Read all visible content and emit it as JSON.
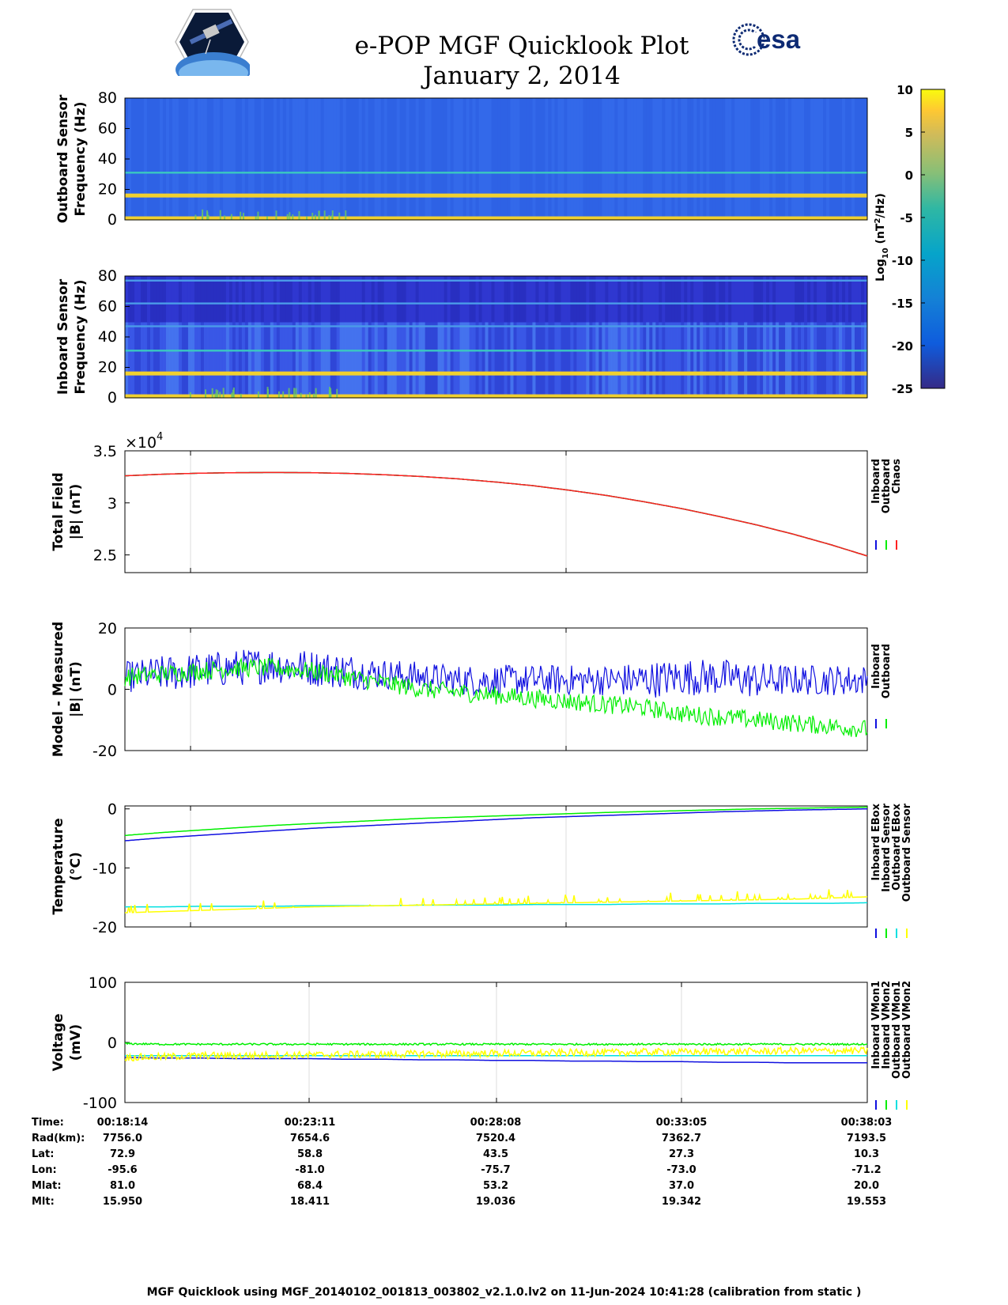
{
  "header": {
    "title": "e-POP MGF Quicklook Plot",
    "date": "January 2, 2014",
    "mission_logo_icon": "cassiope-satellite-logo",
    "agency_logo_icon": "esa-logo",
    "agency_text": "esa"
  },
  "colors": {
    "inboard": "#1010e0",
    "outboard": "#00ee00",
    "chaos": "#ff2020",
    "inboard_sensor": "#00e0e0",
    "outboard_sensor": "#ffff00",
    "spec_background": "#2f5fe0",
    "spec_line": "#f0d030"
  },
  "chart_data": [
    {
      "type": "heatmap",
      "name": "outboard-spectrogram",
      "ylabel": [
        "Outboard Sensor",
        "Frequency (Hz)"
      ],
      "ylim": [
        0,
        80
      ],
      "yticks": [
        0,
        20,
        40,
        60,
        80
      ],
      "lines_hz": [
        1,
        16,
        31
      ]
    },
    {
      "type": "heatmap",
      "name": "inboard-spectrogram",
      "ylabel": [
        "Inboard Sensor",
        "Frequency (Hz)"
      ],
      "ylim": [
        0,
        80
      ],
      "yticks": [
        0,
        20,
        40,
        60,
        80
      ],
      "lines_hz": [
        1,
        16,
        31,
        47,
        62,
        77
      ]
    },
    {
      "type": "colorbar",
      "label": "Log10 (nT2/Hz)",
      "label_base": "Log",
      "label_sub": "10",
      "label_paren_open": " (nT",
      "label_sup": "2",
      "label_tail": "/Hz)",
      "range": [
        -25,
        10
      ],
      "ticks": [
        10,
        5,
        0,
        -5,
        -10,
        -15,
        -20,
        -25
      ]
    },
    {
      "type": "line",
      "name": "total-field",
      "ylabel": [
        "Total Field",
        "|B| (nT)"
      ],
      "exponent_label": "×10",
      "exponent": "4",
      "ylim": [
        2.33,
        3.5
      ],
      "yticks": [
        2.5,
        3,
        3.5
      ],
      "ytick_labels": [
        "2.5",
        "3",
        "3.5"
      ],
      "x": [
        0,
        0.05,
        0.1,
        0.15,
        0.2,
        0.25,
        0.3,
        0.35,
        0.4,
        0.45,
        0.5,
        0.55,
        0.6,
        0.65,
        0.7,
        0.75,
        0.8,
        0.85,
        0.9,
        0.95,
        1.0
      ],
      "series": [
        {
          "name": "Inboard",
          "color_key": "inboard",
          "values": [
            3.26,
            3.275,
            3.285,
            3.29,
            3.292,
            3.29,
            3.283,
            3.27,
            3.253,
            3.23,
            3.2,
            3.165,
            3.12,
            3.07,
            3.01,
            2.945,
            2.87,
            2.79,
            2.7,
            2.6,
            2.49
          ]
        },
        {
          "name": "Outboard",
          "color_key": "outboard",
          "values": [
            3.26,
            3.275,
            3.285,
            3.29,
            3.292,
            3.29,
            3.283,
            3.27,
            3.253,
            3.23,
            3.2,
            3.165,
            3.12,
            3.07,
            3.01,
            2.945,
            2.87,
            2.79,
            2.7,
            2.6,
            2.49
          ]
        },
        {
          "name": "Chaos",
          "color_key": "chaos",
          "values": [
            3.26,
            3.275,
            3.285,
            3.29,
            3.292,
            3.29,
            3.283,
            3.27,
            3.253,
            3.23,
            3.2,
            3.165,
            3.12,
            3.07,
            3.01,
            2.945,
            2.87,
            2.79,
            2.7,
            2.6,
            2.49
          ]
        }
      ]
    },
    {
      "type": "line",
      "name": "model-measured",
      "ylabel": [
        "Model - Measured",
        "|B| (nT)"
      ],
      "ylim": [
        -20,
        20
      ],
      "yticks": [
        -20,
        0,
        20
      ],
      "x": [
        0,
        0.05,
        0.1,
        0.15,
        0.2,
        0.25,
        0.3,
        0.35,
        0.4,
        0.45,
        0.5,
        0.55,
        0.6,
        0.65,
        0.7,
        0.75,
        0.8,
        0.85,
        0.9,
        0.95,
        1.0
      ],
      "series": [
        {
          "name": "Inboard",
          "color_key": "inboard",
          "center": [
            4,
            5,
            6,
            7,
            8,
            7,
            6,
            5,
            4,
            3,
            3,
            3,
            3,
            3,
            3,
            4,
            4,
            3,
            3,
            3,
            3
          ],
          "amplitude": [
            5,
            6,
            6,
            6,
            6,
            6,
            6,
            5,
            5,
            5,
            5,
            5,
            5,
            5,
            6,
            6,
            6,
            6,
            5,
            5,
            5
          ]
        },
        {
          "name": "Outboard",
          "color_key": "outboard",
          "center": [
            4,
            5,
            6,
            7,
            7,
            6,
            4,
            2,
            0,
            -1,
            -2,
            -3,
            -4,
            -5,
            -6,
            -8,
            -9,
            -10,
            -11,
            -12,
            -13
          ],
          "amplitude": [
            3,
            3,
            3,
            3,
            3,
            3,
            3,
            3,
            3,
            3,
            3,
            3,
            3,
            3,
            3,
            3,
            3,
            3,
            3,
            3,
            3
          ]
        }
      ]
    },
    {
      "type": "line",
      "name": "temperature",
      "ylabel": [
        "Temperature",
        "(°C)"
      ],
      "ylim": [
        -20,
        0.5
      ],
      "yticks": [
        -20,
        -10,
        0
      ],
      "x": [
        0,
        0.05,
        0.1,
        0.15,
        0.2,
        0.25,
        0.3,
        0.35,
        0.4,
        0.45,
        0.5,
        0.55,
        0.6,
        0.65,
        0.7,
        0.75,
        0.8,
        0.85,
        0.9,
        0.95,
        1.0
      ],
      "series": [
        {
          "name": "Inboard EBox",
          "color_key": "inboard",
          "values": [
            -5.4,
            -4.9,
            -4.5,
            -4.1,
            -3.7,
            -3.3,
            -3.0,
            -2.7,
            -2.4,
            -2.1,
            -1.8,
            -1.5,
            -1.3,
            -1.1,
            -0.9,
            -0.7,
            -0.5,
            -0.35,
            -0.2,
            -0.1,
            0.0
          ]
        },
        {
          "name": "Inboard Sensor",
          "color_key": "outboard",
          "values": [
            -4.5,
            -4.0,
            -3.6,
            -3.2,
            -2.8,
            -2.5,
            -2.2,
            -1.9,
            -1.6,
            -1.4,
            -1.2,
            -1.0,
            -0.8,
            -0.6,
            -0.45,
            -0.3,
            -0.15,
            0.0,
            0.1,
            0.2,
            0.3
          ]
        },
        {
          "name": "Outboard EBox",
          "color_key": "inboard_sensor",
          "values": [
            -16.6,
            -16.6,
            -16.5,
            -16.5,
            -16.5,
            -16.4,
            -16.4,
            -16.4,
            -16.3,
            -16.3,
            -16.3,
            -16.2,
            -16.2,
            -16.2,
            -16.1,
            -16.1,
            -16.1,
            -16.0,
            -16.0,
            -16.0,
            -15.9
          ]
        },
        {
          "name": "Outboard Sensor",
          "color_key": "outboard_sensor",
          "values": [
            -17.6,
            -17.4,
            -17.2,
            -17.0,
            -16.8,
            -16.6,
            -16.5,
            -16.4,
            -16.3,
            -16.2,
            -16.1,
            -16.0,
            -15.9,
            -15.8,
            -15.7,
            -15.6,
            -15.5,
            -15.4,
            -15.3,
            -15.1,
            -14.9
          ]
        }
      ]
    },
    {
      "type": "line",
      "name": "voltage",
      "ylabel": [
        "Voltage",
        "(mV)"
      ],
      "ylim": [
        -100,
        100
      ],
      "yticks": [
        -100,
        0,
        100
      ],
      "x": [
        0,
        0.05,
        0.1,
        0.15,
        0.2,
        0.25,
        0.3,
        0.35,
        0.4,
        0.45,
        0.5,
        0.55,
        0.6,
        0.65,
        0.7,
        0.75,
        0.8,
        0.85,
        0.9,
        0.95,
        1.0
      ],
      "series": [
        {
          "name": "Inboard VMon1",
          "color_key": "inboard",
          "values": [
            -25,
            -26,
            -26,
            -27,
            -27,
            -27,
            -28,
            -28,
            -29,
            -29,
            -30,
            -30,
            -31,
            -31,
            -32,
            -32,
            -33,
            -33,
            -34,
            -34,
            -34
          ]
        },
        {
          "name": "Inboard VMon2",
          "color_key": "outboard",
          "values": [
            -2,
            -3,
            -3,
            -3,
            -3,
            -3,
            -3,
            -3,
            -3,
            -3,
            -3,
            -3,
            -3,
            -3,
            -3,
            -3,
            -3,
            -3,
            -3,
            -3,
            -3
          ]
        },
        {
          "name": "Outboard VMon1",
          "color_key": "inboard_sensor",
          "values": [
            -22,
            -22,
            -22,
            -22,
            -22,
            -22,
            -22,
            -22,
            -22,
            -22,
            -22,
            -22,
            -22,
            -22,
            -22,
            -22,
            -22,
            -22,
            -22,
            -22,
            -22
          ]
        },
        {
          "name": "Outboard VMon2",
          "color_key": "outboard_sensor",
          "values": [
            -25,
            -24,
            -22,
            -22,
            -21,
            -21,
            -20,
            -20,
            -19,
            -19,
            -18,
            -18,
            -17,
            -17,
            -16,
            -16,
            -15,
            -15,
            -14,
            -14,
            -14
          ]
        }
      ]
    }
  ],
  "ephemeris": {
    "labels": [
      "Time:",
      "Rad(km):",
      "Lat:",
      "Lon:",
      "Mlat:",
      "Mlt:"
    ],
    "columns": [
      {
        "values": [
          "00:18:14",
          "7756.0",
          "72.9",
          "-95.6",
          "81.0",
          "15.950"
        ]
      },
      {
        "values": [
          "00:23:11",
          "7654.6",
          "58.8",
          "-81.0",
          "68.4",
          "18.411"
        ]
      },
      {
        "values": [
          "00:28:08",
          "7520.4",
          "43.5",
          "-75.7",
          "53.2",
          "19.036"
        ]
      },
      {
        "values": [
          "00:33:05",
          "7362.7",
          "27.3",
          "-73.0",
          "37.0",
          "19.342"
        ]
      },
      {
        "values": [
          "00:38:03",
          "7193.5",
          "10.3",
          "-71.2",
          "20.0",
          "19.553"
        ]
      }
    ]
  },
  "footer": "MGF Quicklook using MGF_20140102_001813_003802_v2.1.0.lv2 on 11-Jun-2024 10:41:28 (calibration from static )"
}
